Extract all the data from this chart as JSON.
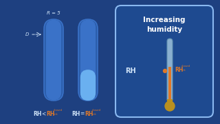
{
  "bg_color": "#1e4080",
  "tube_color_dark": "#2a5caa",
  "tube_color_mid": "#3a72c8",
  "tube_color_light": "#4a8ae0",
  "liquid_color": "#6ab0f0",
  "box_color": "#1e4a90",
  "box_edge_color": "#8ab8f0",
  "title_text_line1": "Increasing",
  "title_text_line2": "humidity",
  "title_color": "#ffffff",
  "text_color": "#d0e4f8",
  "orange_color": "#e07828",
  "gold_color": "#b89020",
  "therm_body_color": "#8ab0d0",
  "therm_edge_color": "#6090b0",
  "tube_label_R": "R = 5",
  "tube_label_D": "D"
}
